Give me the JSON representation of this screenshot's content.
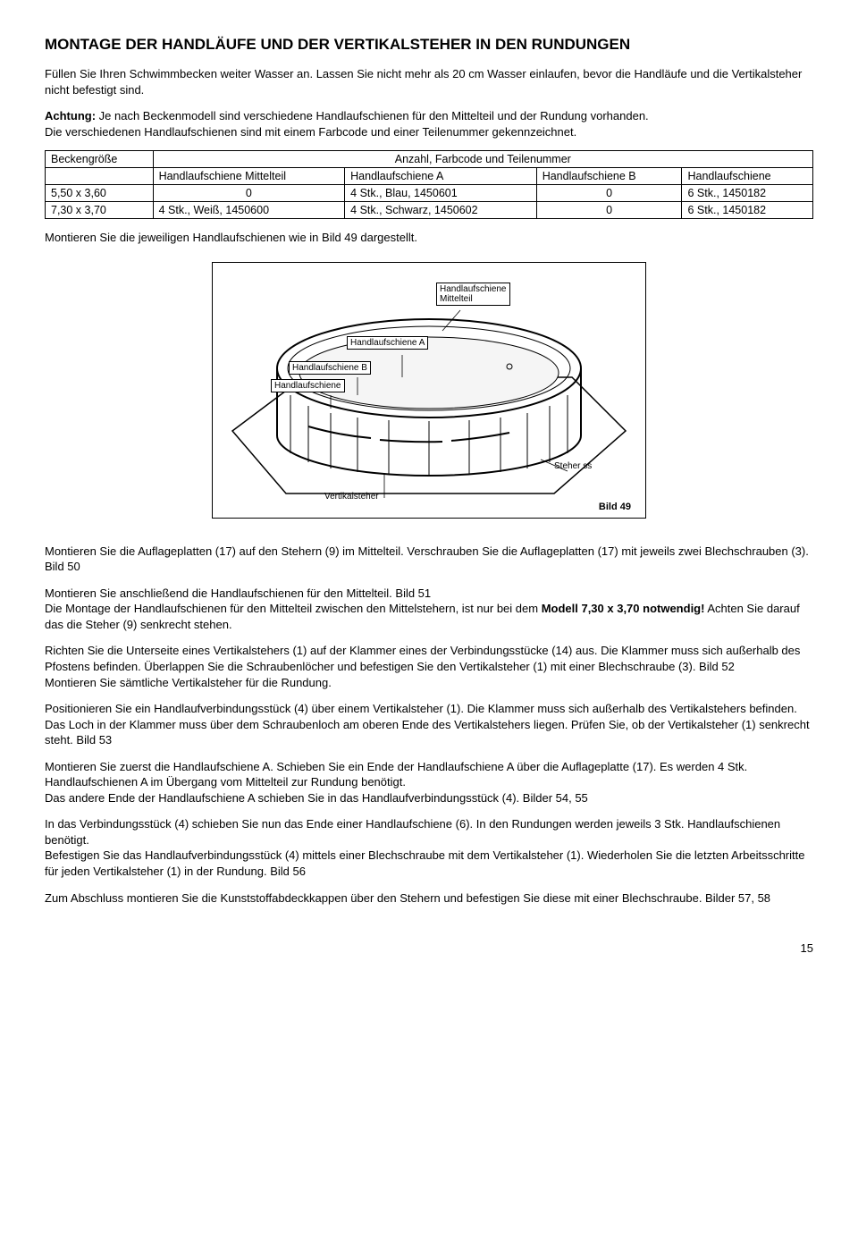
{
  "title": "MONTAGE DER HANDLÄUFE UND DER VERTIKALSTEHER IN DEN RUNDUNGEN",
  "intro1": "Füllen Sie Ihren Schwimmbecken weiter Wasser an. Lassen Sie nicht mehr als 20 cm Wasser einlaufen, bevor die Handläufe und die Vertikalsteher nicht befestigt sind.",
  "intro2a": "Achtung:",
  "intro2b": " Je nach Beckenmodell sind verschiedene Handlaufschienen für den Mittelteil und der Rundung vorhanden.",
  "intro3": "Die verschiedenen Handlaufschienen sind mit einem Farbcode und einer Teilenummer gekennzeichnet.",
  "table": {
    "h_size": "Beckengröße",
    "h_span": "Anzahl, Farbcode und Teilenummer",
    "h_mittel": "Handlaufschiene Mittelteil",
    "h_a": "Handlaufschiene A",
    "h_b": "Handlaufschiene B",
    "h_plain": "Handlaufschiene",
    "rows": [
      {
        "size": "5,50 x 3,60",
        "mittel": "0",
        "a": "4 Stk., Blau, 1450601",
        "b": "0",
        "plain": "6 Stk., 1450182"
      },
      {
        "size": "7,30 x 3,70",
        "mittel": "4 Stk., Weiß, 1450600",
        "a": "4 Stk., Schwarz, 1450602",
        "b": "0",
        "plain": "6 Stk., 1450182"
      }
    ]
  },
  "afterTable": "Montieren Sie die jeweiligen Handlaufschienen wie in Bild 49 dargestellt.",
  "diagram": {
    "l_mittel": "Handlaufschiene\nMittelteil",
    "l_a": "Handlaufschiene A",
    "l_b": "Handlaufschiene B",
    "l_plain": "Handlaufschiene",
    "l_steher": "Steher ss",
    "l_vert": "Vertikalsteher",
    "l_bild": "Bild 49"
  },
  "para": {
    "p1": "Montieren Sie die Auflageplatten (17) auf den Stehern (9) im Mittelteil. Verschrauben Sie die Auflageplatten (17) mit jeweils zwei Blechschrauben (3). Bild 50",
    "p2a": "Montieren Sie anschließend die Handlaufschienen für den Mittelteil. Bild 51",
    "p2b": "Die Montage der Handlaufschienen für den Mittelteil zwischen den Mittelstehern, ist nur bei dem ",
    "p2c": "Modell 7,30 x 3,70 notwendig!",
    "p2d": " Achten Sie darauf das die Steher (9) senkrecht stehen.",
    "p3": "Richten Sie die Unterseite eines Vertikalstehers (1) auf der Klammer eines der Verbindungsstücke (14) aus. Die Klammer muss sich außerhalb des Pfostens befinden. Überlappen Sie die Schraubenlöcher und befestigen Sie den Vertikalsteher (1) mit einer Blechschraube (3). Bild 52",
    "p3b": "Montieren Sie sämtliche Vertikalsteher für die Rundung.",
    "p4": "Positionieren Sie ein Handlaufverbindungsstück (4) über einem Vertikalsteher (1). Die Klammer muss sich außerhalb des Vertikalstehers befinden. Das Loch in der Klammer muss über dem Schraubenloch am oberen Ende des Vertikalstehers liegen. Prüfen Sie, ob der Vertikalsteher (1) senkrecht steht. Bild 53",
    "p5a": "Montieren Sie zuerst die Handlaufschiene A. Schieben Sie ein Ende der Handlaufschiene A über die Auflageplatte (17). Es werden 4 Stk. Handlaufschienen A  im Übergang vom Mittelteil zur Rundung benötigt.",
    "p5b": "Das andere Ende der Handlaufschiene A schieben Sie in das Handlaufverbindungsstück (4). Bilder 54, 55",
    "p6a": "In das Verbindungsstück (4) schieben Sie nun das Ende einer Handlaufschiene (6). In den Rundungen werden jeweils 3 Stk. Handlaufschienen benötigt.",
    "p6b": "Befestigen Sie das Handlaufverbindungsstück (4) mittels einer Blechschraube mit dem Vertikalsteher (1). Wiederholen Sie die letzten Arbeitsschritte für jeden Vertikalsteher (1) in der Rundung. Bild 56",
    "p7": "Zum Abschluss montieren Sie die Kunststoffabdeckkappen über den Stehern und befestigen Sie diese mit einer Blechschraube. Bilder 57, 58"
  },
  "pageNum": "15"
}
